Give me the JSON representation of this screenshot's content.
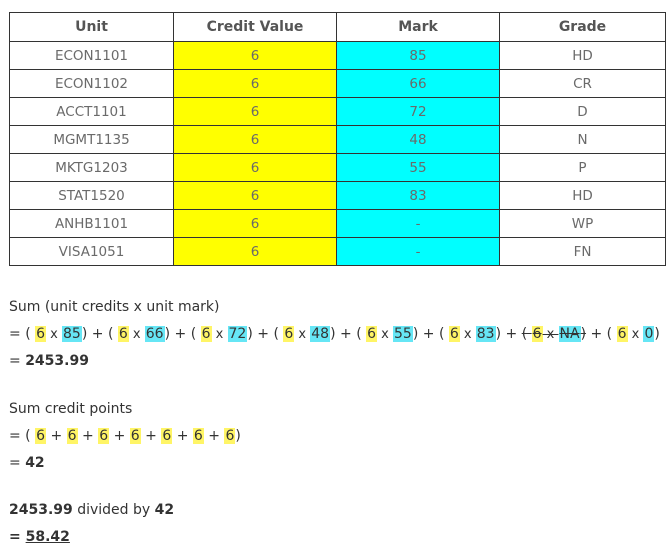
{
  "table": {
    "headers": [
      "Unit",
      "Credit Value",
      "Mark",
      "Grade"
    ],
    "rows": [
      {
        "unit": "ECON1101",
        "credit": "6",
        "mark": "85",
        "grade": "HD"
      },
      {
        "unit": "ECON1102",
        "credit": "6",
        "mark": "66",
        "grade": "CR"
      },
      {
        "unit": "ACCT1101",
        "credit": "6",
        "mark": "72",
        "grade": "D"
      },
      {
        "unit": "MGMT1135",
        "credit": "6",
        "mark": "48",
        "grade": "N"
      },
      {
        "unit": "MKTG1203",
        "credit": "6",
        "mark": "55",
        "grade": "P"
      },
      {
        "unit": "STAT1520",
        "credit": "6",
        "mark": "83",
        "grade": "HD"
      },
      {
        "unit": "ANHB1101",
        "credit": "6",
        "mark": "-",
        "grade": "WP"
      },
      {
        "unit": "VISA1051",
        "credit": "6",
        "mark": "-",
        "grade": "FN"
      }
    ]
  },
  "sum_products": {
    "label": "Sum (unit credits x unit mark)",
    "terms": [
      {
        "credit": "6",
        "mark": "85",
        "struck": false
      },
      {
        "credit": "6",
        "mark": "66",
        "struck": false
      },
      {
        "credit": "6",
        "mark": "72",
        "struck": false
      },
      {
        "credit": "6",
        "mark": "48",
        "struck": false
      },
      {
        "credit": "6",
        "mark": "55",
        "struck": false
      },
      {
        "credit": "6",
        "mark": "83",
        "struck": false
      },
      {
        "credit": "6",
        "mark": "NA",
        "struck": true
      },
      {
        "credit": "6",
        "mark": "0",
        "struck": false
      }
    ],
    "result_prefix": "= ",
    "result": "2453.99"
  },
  "sum_credits": {
    "label": "Sum credit points",
    "terms": [
      "6",
      "6",
      "6",
      "6",
      "6",
      "6",
      "6"
    ],
    "result_prefix": "= ",
    "result": "42"
  },
  "division": {
    "numerator": "2453.99",
    "text": " divided by ",
    "denominator": "42",
    "result_prefix": "= ",
    "result": "58.42"
  },
  "colors": {
    "credit_highlight": "#ffff00",
    "mark_highlight": "#00ffff"
  }
}
